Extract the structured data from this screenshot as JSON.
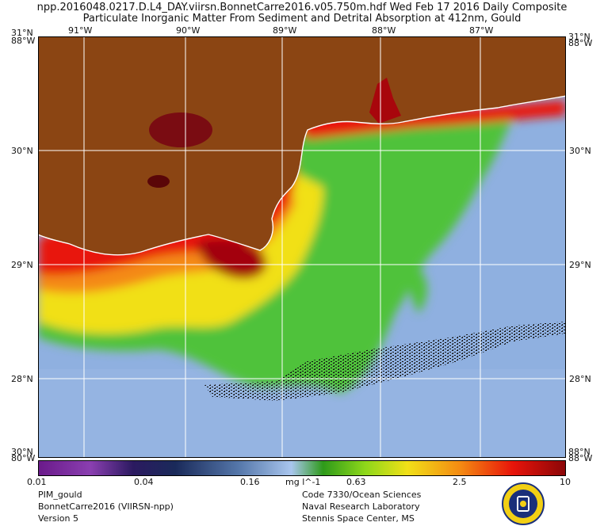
{
  "header": {
    "line1": "npp.2016048.0217.D.L4_DAY.viirsn.BonnetCarre2016.v05.750m.hdf    Wed Feb 17 2016 Daily Composite",
    "line2": "Particulate Inorganic Matter From Sediment and Detrital Absorption at 412nm, Gould"
  },
  "map": {
    "top_lon_labels": [
      "91°W",
      "90°W",
      "89°W",
      "88°W",
      "87°W"
    ],
    "corner_labels": {
      "top_left_lat": "31°N",
      "top_left_lon": "88°W",
      "top_right_lat": "31°N",
      "top_right_lon": "88°W",
      "bottom_left_lat": "30°N",
      "bottom_left_lon": "80°W",
      "bottom_right_lat": "88°N",
      "bottom_right_lon": "88°W"
    },
    "left_lat_labels": [
      "30°N",
      "29°N",
      "28°N"
    ],
    "right_lat_labels": [
      "30°N",
      "29°N",
      "28°N"
    ],
    "colors": {
      "land": "#8B4513",
      "clear_water": "#8fb0e0",
      "turbid_red": "#e8140a",
      "green": "#4fc23a",
      "yellow": "#f1e018",
      "coast": "#ffffff",
      "grid": "#ffffff"
    }
  },
  "colorbar": {
    "ticks": [
      "0.01",
      "0.04",
      "0.16",
      "0.63",
      "2.5",
      "10"
    ],
    "units": "mg l^-1"
  },
  "footer": {
    "left": [
      "PIM_gould",
      "BonnetCarre2016 (VIIRSN-npp)",
      "Version 5"
    ],
    "right": [
      "Code 7330/Ocean Sciences",
      "Naval Research Laboratory",
      "Stennis Space Center, MS"
    ]
  }
}
